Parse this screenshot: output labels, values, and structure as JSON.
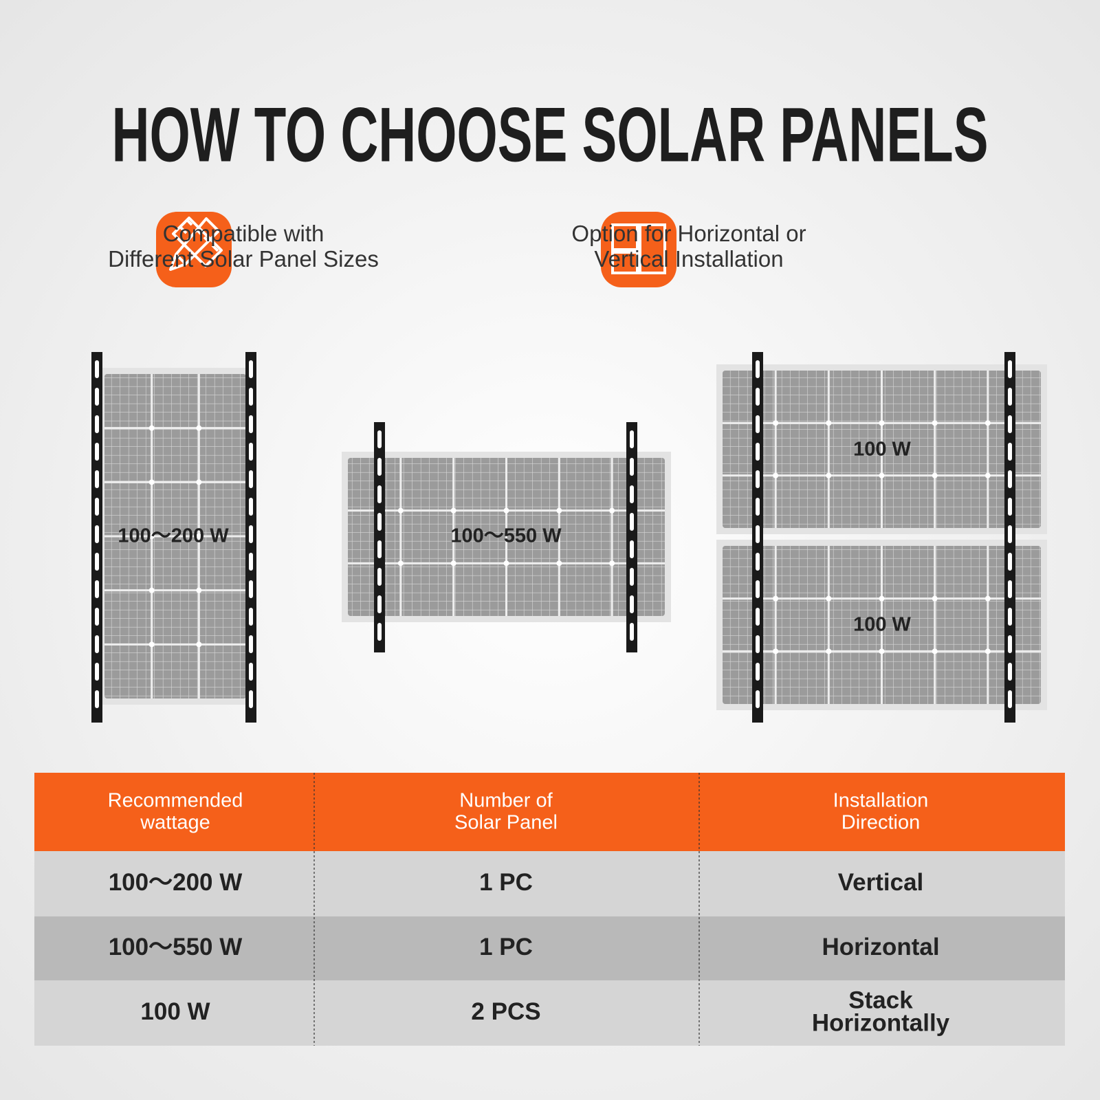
{
  "header": {
    "title": "HOW TO CHOOSE SOLAR PANELS"
  },
  "features": [
    {
      "lines": [
        "Compatible with",
        "Different Solar Panel Sizes"
      ]
    },
    {
      "lines": [
        "Option for Horizontal or",
        "Vertical Installation"
      ]
    }
  ],
  "diagrams": [
    {
      "labels": [
        "100～200 W"
      ]
    },
    {
      "labels": [
        "100～550 W"
      ]
    },
    {
      "labels": [
        "100 W",
        "100 W"
      ]
    }
  ],
  "table": {
    "headers": [
      [
        "Recommended",
        "wattage"
      ],
      [
        "Number of",
        "Solar Panel"
      ],
      [
        "Installation",
        "Direction"
      ]
    ],
    "rows": [
      [
        [
          "100～200 W"
        ],
        [
          "1 PC"
        ],
        [
          "Vertical"
        ]
      ],
      [
        [
          "100～550 W"
        ],
        [
          "1 PC"
        ],
        [
          "Horizontal"
        ]
      ],
      [
        [
          "100 W"
        ],
        [
          "2 PCS"
        ],
        [
          "Stack",
          "Horizontally"
        ]
      ]
    ]
  }
}
